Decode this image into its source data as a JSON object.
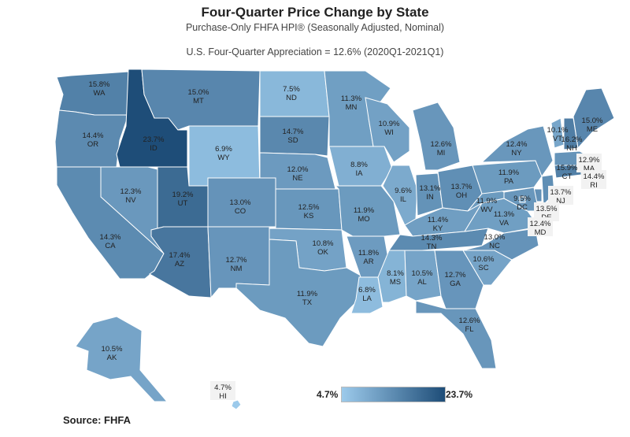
{
  "header": {
    "title": "Four-Quarter Price Change by State",
    "subtitle": "Purchase-Only FHFA HPI® (Seasonally Adjusted, Nominal)",
    "appreciation": "U.S. Four-Quarter Appreciation = 12.6% (2020Q1-2021Q1)"
  },
  "legend": {
    "min": "4.7%",
    "max": "23.7%",
    "min_value": 4.7,
    "max_value": 23.7,
    "color_low": "#9ccaeb",
    "color_high": "#1e4d78"
  },
  "source": "Source:  FHFA",
  "states": [
    {
      "abbr": "WA",
      "pct": "15.8%",
      "value": 15.8
    },
    {
      "abbr": "OR",
      "pct": "14.4%",
      "value": 14.4
    },
    {
      "abbr": "CA",
      "pct": "14.3%",
      "value": 14.3
    },
    {
      "abbr": "NV",
      "pct": "12.3%",
      "value": 12.3
    },
    {
      "abbr": "ID",
      "pct": "23.7%",
      "value": 23.7
    },
    {
      "abbr": "MT",
      "pct": "15.0%",
      "value": 15.0
    },
    {
      "abbr": "WY",
      "pct": "6.9%",
      "value": 6.9
    },
    {
      "abbr": "UT",
      "pct": "19.2%",
      "value": 19.2
    },
    {
      "abbr": "CO",
      "pct": "13.0%",
      "value": 13.0
    },
    {
      "abbr": "AZ",
      "pct": "17.4%",
      "value": 17.4
    },
    {
      "abbr": "NM",
      "pct": "12.7%",
      "value": 12.7
    },
    {
      "abbr": "ND",
      "pct": "7.5%",
      "value": 7.5
    },
    {
      "abbr": "SD",
      "pct": "14.7%",
      "value": 14.7
    },
    {
      "abbr": "NE",
      "pct": "12.0%",
      "value": 12.0
    },
    {
      "abbr": "KS",
      "pct": "12.5%",
      "value": 12.5
    },
    {
      "abbr": "OK",
      "pct": "10.8%",
      "value": 10.8
    },
    {
      "abbr": "TX",
      "pct": "11.9%",
      "value": 11.9
    },
    {
      "abbr": "MN",
      "pct": "11.3%",
      "value": 11.3
    },
    {
      "abbr": "IA",
      "pct": "8.8%",
      "value": 8.8
    },
    {
      "abbr": "MO",
      "pct": "11.9%",
      "value": 11.9
    },
    {
      "abbr": "AR",
      "pct": "11.8%",
      "value": 11.8
    },
    {
      "abbr": "LA",
      "pct": "6.8%",
      "value": 6.8
    },
    {
      "abbr": "WI",
      "pct": "10.9%",
      "value": 10.9
    },
    {
      "abbr": "IL",
      "pct": "9.6%",
      "value": 9.6
    },
    {
      "abbr": "MI",
      "pct": "12.6%",
      "value": 12.6
    },
    {
      "abbr": "IN",
      "pct": "13.1%",
      "value": 13.1
    },
    {
      "abbr": "OH",
      "pct": "13.7%",
      "value": 13.7
    },
    {
      "abbr": "KY",
      "pct": "11.4%",
      "value": 11.4
    },
    {
      "abbr": "TN",
      "pct": "14.3%",
      "value": 14.3
    },
    {
      "abbr": "MS",
      "pct": "8.1%",
      "value": 8.1
    },
    {
      "abbr": "AL",
      "pct": "10.5%",
      "value": 10.5
    },
    {
      "abbr": "GA",
      "pct": "12.7%",
      "value": 12.7
    },
    {
      "abbr": "FL",
      "pct": "12.6%",
      "value": 12.6
    },
    {
      "abbr": "SC",
      "pct": "10.6%",
      "value": 10.6
    },
    {
      "abbr": "NC",
      "pct": "13.0%",
      "value": 13.0
    },
    {
      "abbr": "VA",
      "pct": "11.3%",
      "value": 11.3
    },
    {
      "abbr": "WV",
      "pct": "11.9%",
      "value": 11.9
    },
    {
      "abbr": "PA",
      "pct": "11.9%",
      "value": 11.9
    },
    {
      "abbr": "NY",
      "pct": "12.4%",
      "value": 12.4
    },
    {
      "abbr": "VT",
      "pct": "10.1%",
      "value": 10.1
    },
    {
      "abbr": "NH",
      "pct": "16.2%",
      "value": 16.2
    },
    {
      "abbr": "ME",
      "pct": "15.0%",
      "value": 15.0
    },
    {
      "abbr": "MA",
      "pct": "12.9%",
      "value": 12.9
    },
    {
      "abbr": "RI",
      "pct": "14.4%",
      "value": 14.4
    },
    {
      "abbr": "CT",
      "pct": "15.9%",
      "value": 15.9
    },
    {
      "abbr": "NJ",
      "pct": "13.7%",
      "value": 13.7
    },
    {
      "abbr": "DE",
      "pct": "13.5%",
      "value": 13.5
    },
    {
      "abbr": "MD",
      "pct": "12.4%",
      "value": 12.4
    },
    {
      "abbr": "DC",
      "pct": "9.5%",
      "value": 9.5
    },
    {
      "abbr": "AK",
      "pct": "10.5%",
      "value": 10.5
    },
    {
      "abbr": "HI",
      "pct": "4.7%",
      "value": 4.7
    }
  ]
}
